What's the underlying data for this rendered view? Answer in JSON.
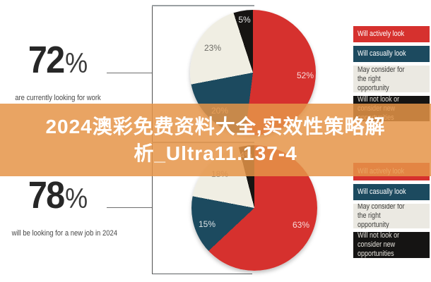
{
  "banner": {
    "line1": "2024澳彩免费资料大全,实效性策略解",
    "line2": "析_Ultra11.137-4",
    "full_text": "2024澳彩免费资料大全,实效性策略解析_Ultra11.137-4",
    "overlay_color": "rgba(229,148,72,0.85)",
    "text_color": "#ffffff"
  },
  "stats": [
    {
      "value": "72",
      "unit": "%",
      "caption": "are currently looking for work"
    },
    {
      "value": "78",
      "unit": "%",
      "caption": "will be looking for a new job in 2024"
    }
  ],
  "legend": {
    "items": [
      {
        "label": "Will actively look",
        "color": "#d6312e",
        "text_color": "#ffffff"
      },
      {
        "label": "Will casually look",
        "color": "#1c4a5f",
        "text_color": "#ffffff"
      },
      {
        "label": "May consider for the right opportunity",
        "color": "#ebe9e2",
        "text_color": "#3e3e3c"
      },
      {
        "label": "Will not look or consider new opportunities",
        "color": "#151413",
        "text_color": "#e6e3dc"
      }
    ]
  },
  "chart_data": [
    {
      "type": "pie",
      "title": "72% are currently looking for work",
      "categories": [
        "Will actively look",
        "Will casually look",
        "May consider for the right opportunity",
        "Will not look or consider new opportunities"
      ],
      "values": [
        52,
        20,
        23,
        5
      ],
      "slice_labels": [
        "52%",
        "20%",
        "23%",
        "5%"
      ],
      "colors": [
        "#d6312e",
        "#1c4a5f",
        "#f0eee3",
        "#161412"
      ],
      "start_angle_deg": 0,
      "direction": "clockwise",
      "legend_position": "right"
    },
    {
      "type": "pie",
      "title": "78% will be looking for a new job in 2024",
      "categories": [
        "Will actively look",
        "Will casually look",
        "May consider for the right opportunity",
        "Will not look or consider new opportunities"
      ],
      "values": [
        63,
        15,
        18,
        4
      ],
      "slice_labels": [
        "63%",
        "15%",
        "18%",
        "4%"
      ],
      "colors": [
        "#d6312e",
        "#1c4a5f",
        "#f0eee3",
        "#161412"
      ],
      "start_angle_deg": 0,
      "direction": "clockwise",
      "legend_position": "right"
    }
  ]
}
